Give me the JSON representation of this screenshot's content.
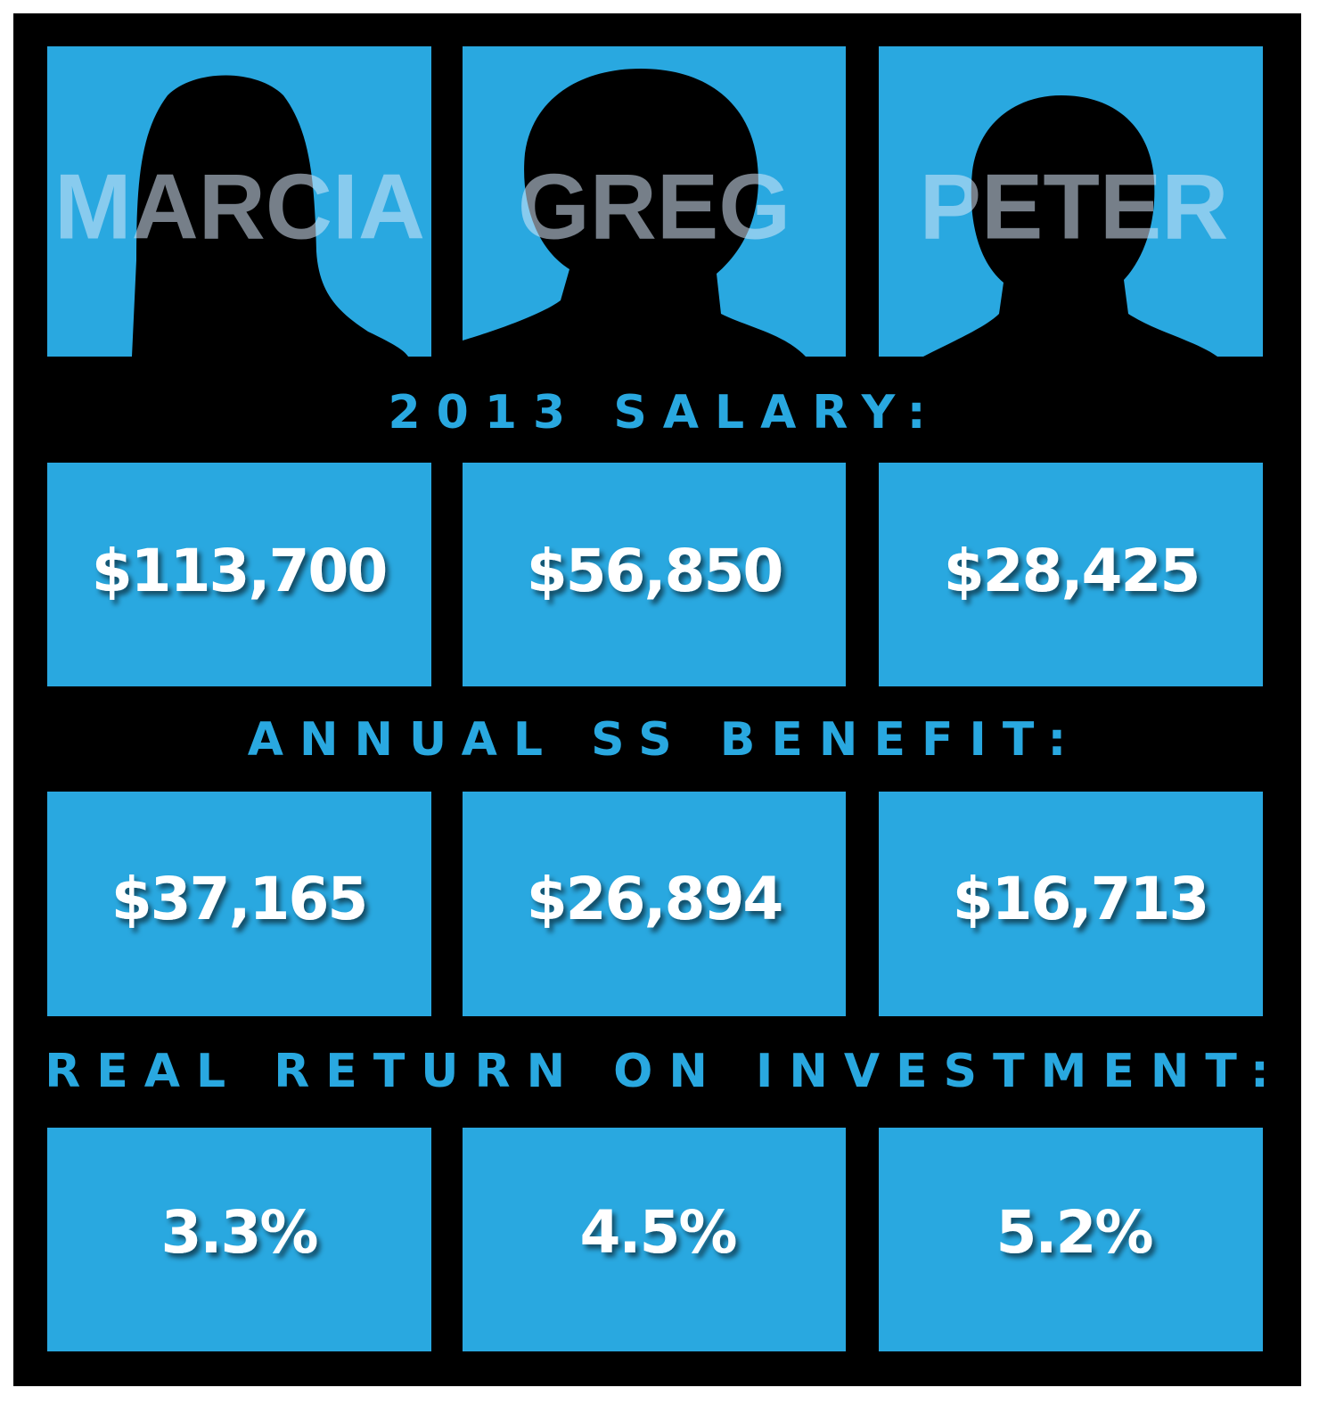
{
  "names": [
    "MARCIA",
    "GREG",
    "PETER"
  ],
  "sections": [
    {
      "heading": "2013 SALARY:",
      "values": [
        "$113,700",
        "$56,850",
        "$28,425"
      ]
    },
    {
      "heading": "ANNUAL SS BENEFIT:",
      "values": [
        "$37,165",
        "$26,894",
        "$16,713"
      ]
    },
    {
      "heading": "REAL RETURN ON INVESTMENT:",
      "values": [
        "3.3%",
        "4.5%",
        "5.2%"
      ]
    }
  ]
}
